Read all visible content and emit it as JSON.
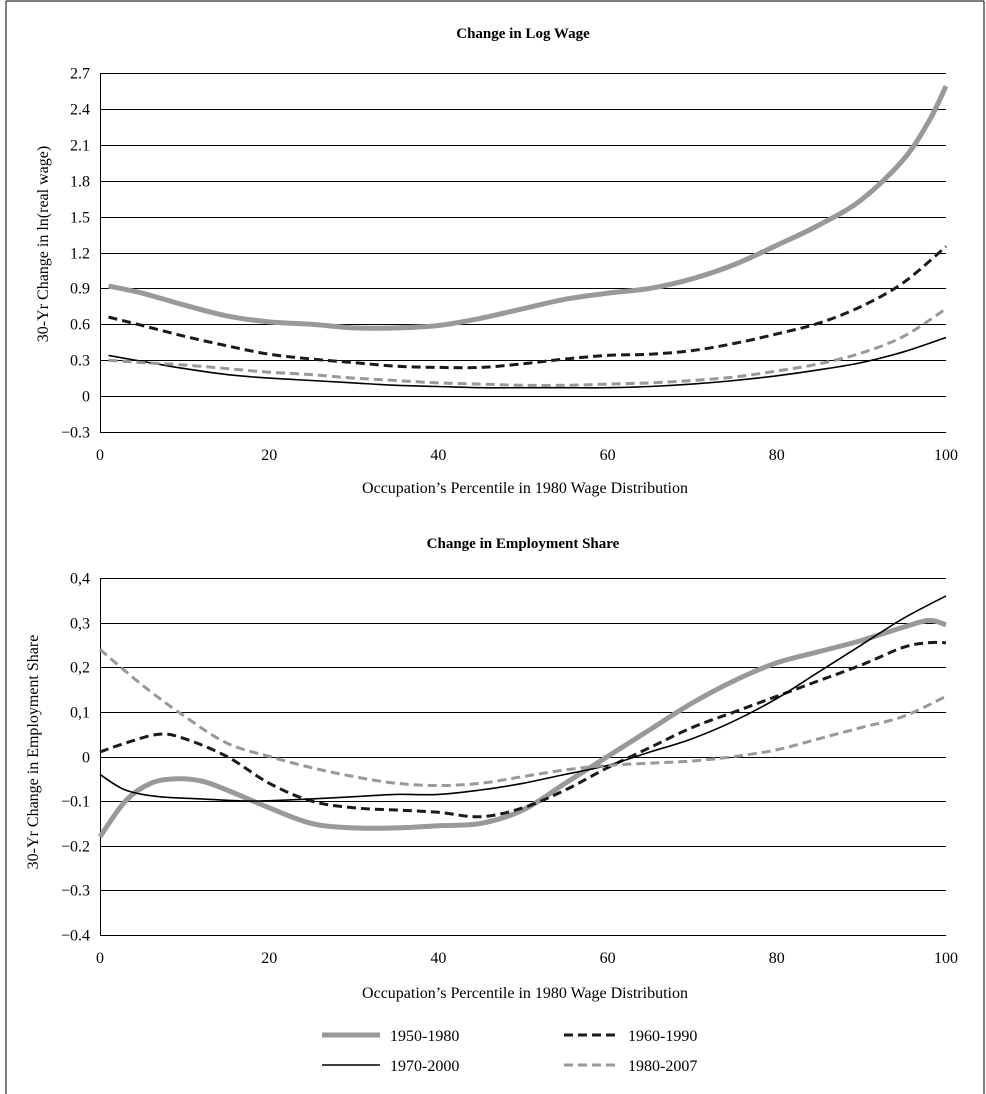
{
  "chart_data": [
    {
      "type": "line",
      "title": "Change in Log Wage",
      "xlabel": "Occupation’s Percentile in 1980 Wage Distribution",
      "ylabel": "30-Yr Change in ln(real wage)",
      "xlim": [
        0,
        100
      ],
      "ylim": [
        -0.3,
        2.7
      ],
      "xticks": [
        0,
        20,
        40,
        60,
        80,
        100
      ],
      "xtick_labels": [
        "0",
        "20",
        "40",
        "60",
        "80",
        "100"
      ],
      "yticks": [
        -0.3,
        0,
        0.3,
        0.6,
        0.9,
        1.2,
        1.5,
        1.8,
        2.1,
        2.4,
        2.7
      ],
      "ytick_labels": [
        "−0.3",
        "0",
        "0.3",
        "0.6",
        "0.9",
        "1.2",
        "1.5",
        "1.8",
        "2.1",
        "2.4",
        "2.7"
      ],
      "grid": "horizontal",
      "series": [
        {
          "name": "1950-1980",
          "style": "solid-thick",
          "color": "#999999",
          "points": [
            [
              1,
              0.92
            ],
            [
              5,
              0.86
            ],
            [
              10,
              0.76
            ],
            [
              15,
              0.67
            ],
            [
              20,
              0.62
            ],
            [
              25,
              0.6
            ],
            [
              30,
              0.57
            ],
            [
              35,
              0.57
            ],
            [
              40,
              0.59
            ],
            [
              45,
              0.65
            ],
            [
              50,
              0.73
            ],
            [
              55,
              0.81
            ],
            [
              60,
              0.86
            ],
            [
              65,
              0.9
            ],
            [
              70,
              0.98
            ],
            [
              75,
              1.1
            ],
            [
              80,
              1.26
            ],
            [
              85,
              1.43
            ],
            [
              90,
              1.64
            ],
            [
              95,
              1.98
            ],
            [
              98,
              2.3
            ],
            [
              100,
              2.59
            ]
          ]
        },
        {
          "name": "1960-1990",
          "style": "dashed",
          "color": "#1a1a1a",
          "points": [
            [
              1,
              0.66
            ],
            [
              5,
              0.59
            ],
            [
              10,
              0.5
            ],
            [
              15,
              0.42
            ],
            [
              20,
              0.35
            ],
            [
              25,
              0.31
            ],
            [
              30,
              0.28
            ],
            [
              35,
              0.25
            ],
            [
              40,
              0.24
            ],
            [
              45,
              0.24
            ],
            [
              50,
              0.27
            ],
            [
              55,
              0.31
            ],
            [
              60,
              0.34
            ],
            [
              65,
              0.35
            ],
            [
              70,
              0.38
            ],
            [
              75,
              0.44
            ],
            [
              80,
              0.52
            ],
            [
              85,
              0.61
            ],
            [
              90,
              0.75
            ],
            [
              95,
              0.95
            ],
            [
              100,
              1.25
            ]
          ]
        },
        {
          "name": "1970-2000",
          "style": "solid-thin",
          "color": "#000000",
          "points": [
            [
              1,
              0.34
            ],
            [
              5,
              0.29
            ],
            [
              10,
              0.23
            ],
            [
              15,
              0.18
            ],
            [
              20,
              0.15
            ],
            [
              25,
              0.13
            ],
            [
              30,
              0.11
            ],
            [
              35,
              0.09
            ],
            [
              40,
              0.08
            ],
            [
              45,
              0.07
            ],
            [
              50,
              0.07
            ],
            [
              55,
              0.07
            ],
            [
              60,
              0.07
            ],
            [
              65,
              0.08
            ],
            [
              70,
              0.1
            ],
            [
              75,
              0.13
            ],
            [
              80,
              0.17
            ],
            [
              85,
              0.22
            ],
            [
              90,
              0.28
            ],
            [
              95,
              0.37
            ],
            [
              100,
              0.49
            ]
          ]
        },
        {
          "name": "1980-2007",
          "style": "dashed",
          "color": "#999999",
          "points": [
            [
              1,
              0.3
            ],
            [
              5,
              0.28
            ],
            [
              10,
              0.26
            ],
            [
              15,
              0.23
            ],
            [
              20,
              0.2
            ],
            [
              25,
              0.18
            ],
            [
              30,
              0.15
            ],
            [
              35,
              0.13
            ],
            [
              40,
              0.11
            ],
            [
              45,
              0.1
            ],
            [
              50,
              0.09
            ],
            [
              55,
              0.09
            ],
            [
              60,
              0.1
            ],
            [
              65,
              0.11
            ],
            [
              70,
              0.13
            ],
            [
              75,
              0.16
            ],
            [
              80,
              0.21
            ],
            [
              85,
              0.27
            ],
            [
              90,
              0.36
            ],
            [
              95,
              0.5
            ],
            [
              100,
              0.73
            ]
          ]
        }
      ]
    },
    {
      "type": "line",
      "title": "Change in Employment Share",
      "xlabel": "Occupation’s Percentile in 1980 Wage Distribution",
      "ylabel": "30-Yr Change in Employment Share",
      "xlim": [
        0,
        100
      ],
      "ylim": [
        -0.4,
        0.4
      ],
      "xticks": [
        0,
        20,
        40,
        60,
        80,
        100
      ],
      "xtick_labels": [
        "0",
        "20",
        "40",
        "60",
        "80",
        "100"
      ],
      "yticks": [
        -0.4,
        -0.3,
        -0.2,
        -0.1,
        0,
        0.1,
        0.2,
        0.3,
        0.4
      ],
      "ytick_labels": [
        "−0.4",
        "−0.3",
        "−0.2",
        "−0.1",
        "0",
        "0,1",
        "0,2",
        "0,3",
        "0,4"
      ],
      "grid": "horizontal",
      "series": [
        {
          "name": "1950-1980",
          "style": "solid-thick",
          "color": "#999999",
          "points": [
            [
              0,
              -0.18
            ],
            [
              3,
              -0.1
            ],
            [
              6,
              -0.06
            ],
            [
              9,
              -0.05
            ],
            [
              12,
              -0.055
            ],
            [
              15,
              -0.075
            ],
            [
              20,
              -0.115
            ],
            [
              25,
              -0.15
            ],
            [
              30,
              -0.16
            ],
            [
              35,
              -0.16
            ],
            [
              40,
              -0.155
            ],
            [
              45,
              -0.15
            ],
            [
              50,
              -0.12
            ],
            [
              55,
              -0.06
            ],
            [
              60,
              0.0
            ],
            [
              65,
              0.06
            ],
            [
              70,
              0.12
            ],
            [
              75,
              0.17
            ],
            [
              80,
              0.21
            ],
            [
              85,
              0.235
            ],
            [
              90,
              0.26
            ],
            [
              95,
              0.29
            ],
            [
              98,
              0.305
            ],
            [
              100,
              0.295
            ]
          ]
        },
        {
          "name": "1960-1990",
          "style": "dashed",
          "color": "#1a1a1a",
          "points": [
            [
              0,
              0.01
            ],
            [
              3,
              0.03
            ],
            [
              7,
              0.05
            ],
            [
              10,
              0.04
            ],
            [
              15,
              0.0
            ],
            [
              20,
              -0.06
            ],
            [
              25,
              -0.1
            ],
            [
              30,
              -0.115
            ],
            [
              35,
              -0.12
            ],
            [
              40,
              -0.125
            ],
            [
              45,
              -0.135
            ],
            [
              50,
              -0.115
            ],
            [
              55,
              -0.075
            ],
            [
              60,
              -0.025
            ],
            [
              65,
              0.02
            ],
            [
              70,
              0.065
            ],
            [
              75,
              0.1
            ],
            [
              80,
              0.135
            ],
            [
              85,
              0.17
            ],
            [
              90,
              0.205
            ],
            [
              95,
              0.245
            ],
            [
              98,
              0.255
            ],
            [
              100,
              0.255
            ]
          ]
        },
        {
          "name": "1970-2000",
          "style": "solid-thin",
          "color": "#000000",
          "points": [
            [
              0,
              -0.04
            ],
            [
              3,
              -0.075
            ],
            [
              7,
              -0.09
            ],
            [
              12,
              -0.095
            ],
            [
              18,
              -0.1
            ],
            [
              25,
              -0.095
            ],
            [
              30,
              -0.09
            ],
            [
              35,
              -0.085
            ],
            [
              40,
              -0.085
            ],
            [
              45,
              -0.075
            ],
            [
              50,
              -0.06
            ],
            [
              55,
              -0.04
            ],
            [
              60,
              -0.02
            ],
            [
              65,
              0.01
            ],
            [
              70,
              0.04
            ],
            [
              75,
              0.08
            ],
            [
              80,
              0.13
            ],
            [
              85,
              0.19
            ],
            [
              90,
              0.25
            ],
            [
              95,
              0.31
            ],
            [
              100,
              0.36
            ]
          ]
        },
        {
          "name": "1980-2007",
          "style": "dashed",
          "color": "#999999",
          "points": [
            [
              0,
              0.24
            ],
            [
              5,
              0.16
            ],
            [
              10,
              0.09
            ],
            [
              15,
              0.03
            ],
            [
              20,
              0.0
            ],
            [
              25,
              -0.025
            ],
            [
              30,
              -0.045
            ],
            [
              35,
              -0.06
            ],
            [
              40,
              -0.065
            ],
            [
              45,
              -0.06
            ],
            [
              50,
              -0.045
            ],
            [
              55,
              -0.03
            ],
            [
              60,
              -0.02
            ],
            [
              65,
              -0.015
            ],
            [
              70,
              -0.01
            ],
            [
              75,
              0.0
            ],
            [
              80,
              0.015
            ],
            [
              85,
              0.04
            ],
            [
              90,
              0.065
            ],
            [
              95,
              0.09
            ],
            [
              100,
              0.135
            ]
          ]
        }
      ]
    }
  ],
  "legend": [
    {
      "label": "1950-1980",
      "style": "solid-thick",
      "color": "#999999"
    },
    {
      "label": "1960-1990",
      "style": "dashed",
      "color": "#1a1a1a"
    },
    {
      "label": "1970-2000",
      "style": "solid-thin",
      "color": "#000000"
    },
    {
      "label": "1980-2007",
      "style": "dashed",
      "color": "#999999"
    }
  ]
}
